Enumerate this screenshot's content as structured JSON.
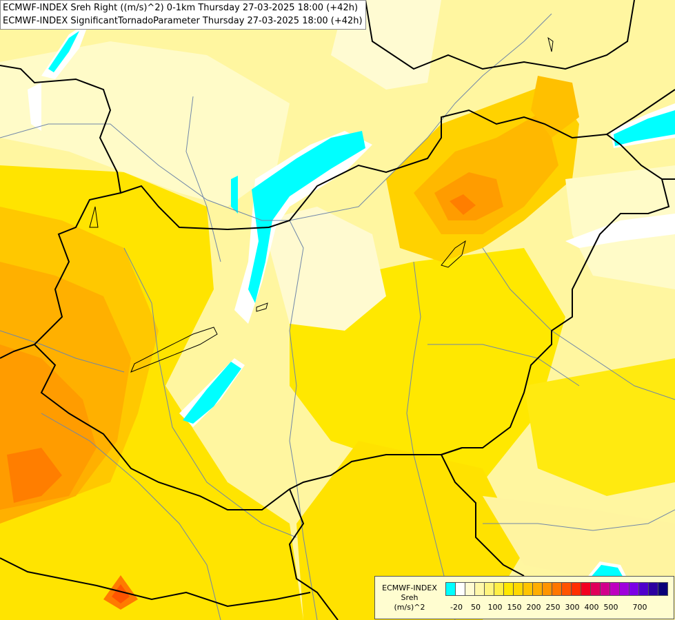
{
  "title_lines": [
    "ECMWF-INDEX Sreh Right ((m/s)^2) 0-1km Thursday 27-03-2025 18:00 (+42h)",
    "ECMWF-INDEX SignificantTornadoParameter Thursday 27-03-2025 18:00 (+42h)"
  ],
  "legend": {
    "model": "ECMWF-INDEX",
    "variable": "Sreh",
    "unit": "(m/s)^2",
    "colors": [
      "#00ffff",
      "#ffffff",
      "#fffbd2",
      "#fff8aa",
      "#fff47e",
      "#ffef46",
      "#ffe800",
      "#ffd800",
      "#ffc400",
      "#ffae00",
      "#ff9400",
      "#ff7700",
      "#ff5400",
      "#ff2e00",
      "#f20020",
      "#e0005a",
      "#d2008c",
      "#be00c0",
      "#a000dc",
      "#7c00e6",
      "#5000cc",
      "#2c00a0",
      "#0a0078"
    ],
    "ticks": [
      "-20",
      "50",
      "100",
      "150",
      "200",
      "250",
      "300",
      "400",
      "500",
      "700"
    ]
  }
}
